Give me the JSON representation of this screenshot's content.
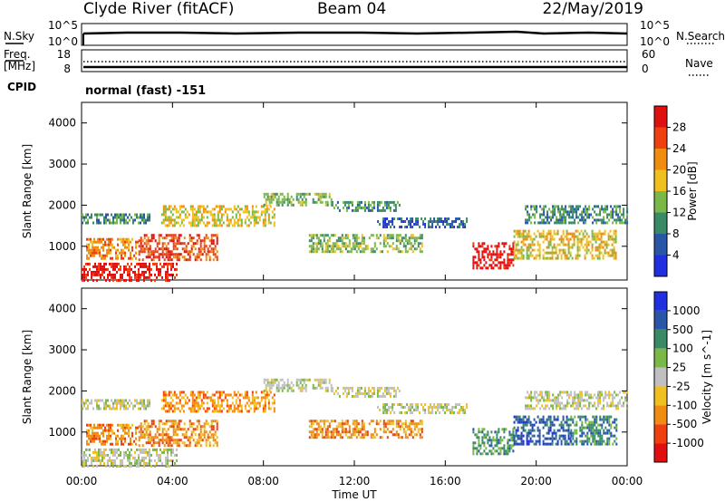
{
  "header": {
    "station": "Clyde River (fitACF)",
    "beam": "Beam 04",
    "date": "22/May/2019"
  },
  "strip_labels": {
    "nsky": "N.Sky",
    "nsky_top": "10^5",
    "nsky_bottom": "10^0",
    "nsearch": "N.Search",
    "nsearch_top": "10^5",
    "nsearch_bottom": "10^0",
    "freq": "Freq.",
    "freq_unit": "[MHz]",
    "freq_top": "18",
    "freq_bottom": "8",
    "nave": "Nave",
    "nave_top": "60",
    "nave_bottom": "0",
    "cpid": "CPID",
    "cpid_text": "normal (fast) -151"
  },
  "chart_data": [
    {
      "type": "heatmap",
      "title": "Power",
      "xlabel": "Time UT",
      "ylabel": "Slant Range [km]",
      "x_ticks": [
        "00:00",
        "04:00",
        "08:00",
        "12:00",
        "16:00",
        "20:00",
        "00:00"
      ],
      "x_hours": [
        0,
        4,
        8,
        12,
        16,
        20,
        24
      ],
      "y_ticks": [
        1000,
        2000,
        3000,
        4000
      ],
      "ylim": [
        180,
        4500
      ],
      "colorbar": {
        "label": "Power [dB]",
        "ticks": [
          "4",
          "8",
          "12",
          "16",
          "20",
          "24",
          "28"
        ],
        "colors": [
          "#2030e0",
          "#2a56a8",
          "#3a8a68",
          "#7ab848",
          "#f0c020",
          "#f08c10",
          "#f04010",
          "#e01010"
        ]
      },
      "regions": [
        {
          "t0": 0.0,
          "t1": 4.2,
          "r0": 200,
          "r1": 600,
          "level": 7
        },
        {
          "t0": 0.2,
          "t1": 2.5,
          "r0": 700,
          "r1": 1200,
          "level": 5
        },
        {
          "t0": 0.0,
          "t1": 3.0,
          "r0": 1600,
          "r1": 1800,
          "level": 2
        },
        {
          "t0": 2.5,
          "t1": 6.0,
          "r0": 700,
          "r1": 1300,
          "level": 6
        },
        {
          "t0": 3.5,
          "t1": 8.5,
          "r0": 1500,
          "r1": 2000,
          "level": 4
        },
        {
          "t0": 8.0,
          "t1": 11.0,
          "r0": 2000,
          "r1": 2300,
          "level": 3
        },
        {
          "t0": 11.0,
          "t1": 14.0,
          "r0": 1900,
          "r1": 2100,
          "level": 2
        },
        {
          "t0": 10.0,
          "t1": 15.0,
          "r0": 900,
          "r1": 1300,
          "level": 3
        },
        {
          "t0": 13.0,
          "t1": 17.0,
          "r0": 1500,
          "r1": 1700,
          "level": 1
        },
        {
          "t0": 17.2,
          "t1": 19.0,
          "r0": 500,
          "r1": 1100,
          "level": 7
        },
        {
          "t0": 19.0,
          "t1": 23.5,
          "r0": 700,
          "r1": 1400,
          "level": 4
        },
        {
          "t0": 19.5,
          "t1": 24.0,
          "r0": 1600,
          "r1": 2000,
          "level": 2
        }
      ]
    },
    {
      "type": "heatmap",
      "title": "Velocity",
      "xlabel": "Time UT",
      "ylabel": "Slant Range [km]",
      "x_ticks": [
        "00:00",
        "04:00",
        "08:00",
        "12:00",
        "16:00",
        "20:00",
        "00:00"
      ],
      "x_hours": [
        0,
        4,
        8,
        12,
        16,
        20,
        24
      ],
      "y_ticks": [
        1000,
        2000,
        3000,
        4000
      ],
      "ylim": [
        180,
        4500
      ],
      "colorbar": {
        "label": "Velocity [m s^-1]",
        "ticks": [
          "1000",
          "500",
          "100",
          "25",
          "-25",
          "-100",
          "-500",
          "-1000"
        ],
        "colors": [
          "#2030e0",
          "#2a56a8",
          "#3a8a68",
          "#7ab848",
          "#c0c0c0",
          "#f0c020",
          "#f08c10",
          "#f04010",
          "#e01010"
        ]
      },
      "regions": [
        {
          "t0": 0.0,
          "t1": 4.2,
          "r0": 200,
          "r1": 600,
          "level": 4
        },
        {
          "t0": 0.2,
          "t1": 2.5,
          "r0": 700,
          "r1": 1200,
          "level": 6
        },
        {
          "t0": 0.0,
          "t1": 3.0,
          "r0": 1600,
          "r1": 1800,
          "level": 4
        },
        {
          "t0": 2.5,
          "t1": 6.0,
          "r0": 700,
          "r1": 1300,
          "level": 6
        },
        {
          "t0": 3.5,
          "t1": 8.5,
          "r0": 1500,
          "r1": 2000,
          "level": 6
        },
        {
          "t0": 8.0,
          "t1": 11.0,
          "r0": 2000,
          "r1": 2300,
          "level": 4
        },
        {
          "t0": 11.0,
          "t1": 14.0,
          "r0": 1900,
          "r1": 2100,
          "level": 4
        },
        {
          "t0": 10.0,
          "t1": 15.0,
          "r0": 900,
          "r1": 1300,
          "level": 6
        },
        {
          "t0": 13.0,
          "t1": 17.0,
          "r0": 1500,
          "r1": 1700,
          "level": 4
        },
        {
          "t0": 17.2,
          "t1": 19.0,
          "r0": 500,
          "r1": 1100,
          "level": 2
        },
        {
          "t0": 19.0,
          "t1": 21.5,
          "r0": 700,
          "r1": 1400,
          "level": 1
        },
        {
          "t0": 21.5,
          "t1": 23.5,
          "r0": 700,
          "r1": 1400,
          "level": 2
        },
        {
          "t0": 19.5,
          "t1": 24.0,
          "r0": 1600,
          "r1": 2000,
          "level": 4
        }
      ]
    }
  ]
}
